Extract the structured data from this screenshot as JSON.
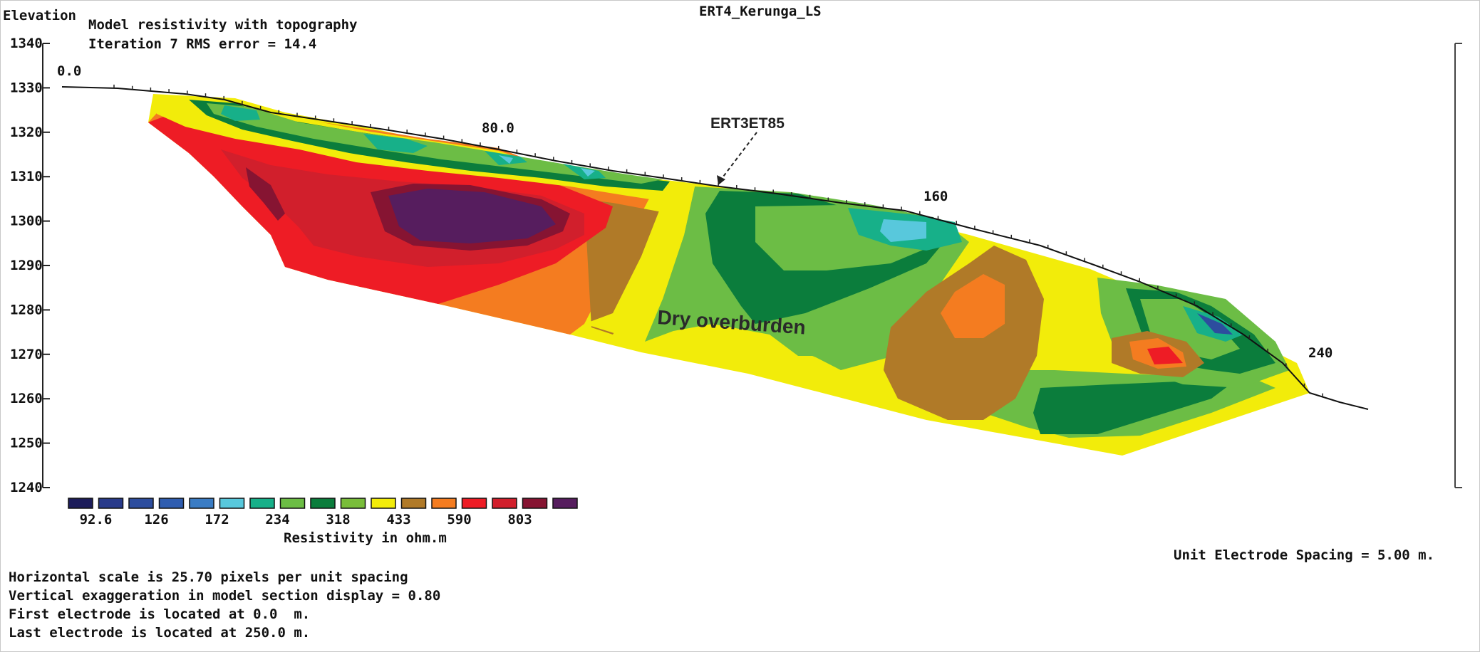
{
  "chart_data": {
    "type": "heatmap",
    "title": "ERT4_Kerunga_LS",
    "subtitle_lines": [
      "Model resistivity with topography",
      "Iteration 7 RMS error = 14.4"
    ],
    "ylabel": "Elevation",
    "yticks": [
      "1340",
      "1330",
      "1320",
      "1310",
      "1300",
      "1290",
      "1280",
      "1270",
      "1260",
      "1250",
      "1240"
    ],
    "ylim": [
      1240,
      1340
    ],
    "xlim": [
      0,
      250
    ],
    "x_ticks_on_surface": [
      {
        "label": "0.0",
        "x": 0
      },
      {
        "label": "80.0",
        "x": 80
      },
      {
        "label": "160",
        "x": 160
      },
      {
        "label": "240",
        "x": 240
      }
    ],
    "annotation_marker": "ERT3ET85",
    "annotation_zone": "Dry overburden",
    "surface_topography": [
      {
        "x": 0,
        "elev": 1330
      },
      {
        "x": 10,
        "elev": 1330
      },
      {
        "x": 30,
        "elev": 1327
      },
      {
        "x": 60,
        "elev": 1320
      },
      {
        "x": 80,
        "elev": 1316
      },
      {
        "x": 100,
        "elev": 1312
      },
      {
        "x": 120,
        "elev": 1308
      },
      {
        "x": 140,
        "elev": 1305
      },
      {
        "x": 160,
        "elev": 1300
      },
      {
        "x": 180,
        "elev": 1292
      },
      {
        "x": 200,
        "elev": 1280
      },
      {
        "x": 220,
        "elev": 1268
      },
      {
        "x": 240,
        "elev": 1258
      },
      {
        "x": 250,
        "elev": 1250
      }
    ],
    "legend": {
      "title": "Resistivity in ohm.m",
      "colors": [
        "#1c1c5a",
        "#283a8a",
        "#2d4d9e",
        "#2f5db0",
        "#3a7cc4",
        "#58c8dc",
        "#17b089",
        "#6cbd45",
        "#0b7d3c",
        "#79bd3a",
        "#f2ec0a",
        "#b07a28",
        "#f47c20",
        "#ee1c25",
        "#d11f2c",
        "#861432",
        "#561d5e"
      ],
      "labels": [
        "92.6",
        "126",
        "172",
        "234",
        "318",
        "433",
        "590",
        "803"
      ]
    },
    "footer_right": "Unit Electrode Spacing = 5.00 m.",
    "footer_lines": [
      "Horizontal scale is 25.70 pixels per unit spacing",
      "Vertical exaggeration in model section display = 0.80",
      "First electrode is located at 0.0  m.",
      "Last electrode is located at 250.0 m."
    ]
  }
}
